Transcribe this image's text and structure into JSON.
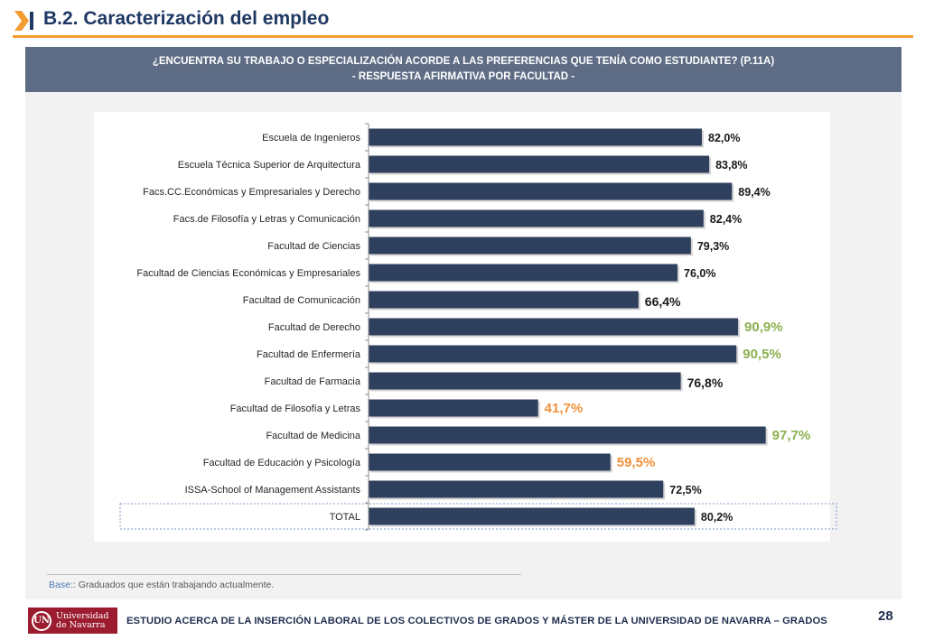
{
  "header": {
    "title": "B.2. Caracterización del empleo"
  },
  "question": {
    "line1": "¿ENCUENTRA SU TRABAJO O ESPECIALIZACIÓN ACORDE A LAS PREFERENCIAS QUE TENÍA COMO ESTUDIANTE? (P.11A)",
    "line2": "- RESPUESTA AFIRMATIVA POR FACULTAD -"
  },
  "chart_data": {
    "type": "bar",
    "orientation": "horizontal",
    "categories": [
      "Escuela de Ingenieros",
      "Escuela Técnica Superior de Arquitectura",
      "Facs.CC.Económicas y Empresariales y Derecho",
      "Facs.de Filosofía y Letras y Comunicación",
      "Facultad de Ciencias",
      "Facultad de Ciencias Económicas y Empresariales",
      "Facultad de Comunicación",
      "Facultad de Derecho",
      "Facultad de Enfermería",
      "Facultad de Farmacia",
      "Facultad de Filosofía y Letras",
      "Facultad de Medicina",
      "Facultad de Educación y Psicología",
      "ISSA-School of Management Assistants",
      "TOTAL"
    ],
    "values": [
      82.0,
      83.8,
      89.4,
      82.4,
      79.3,
      76.0,
      66.4,
      90.9,
      90.5,
      76.8,
      41.7,
      97.7,
      59.5,
      72.5,
      80.2
    ],
    "labels": [
      "82,0%",
      "83,8%",
      "89,4%",
      "82,4%",
      "79,3%",
      "76,0%",
      "66,4%",
      "90,9%",
      "90,5%",
      "76,8%",
      "41,7%",
      "97,7%",
      "59,5%",
      "72,5%",
      "80,2%"
    ],
    "label_styles": [
      "normal",
      "normal",
      "normal",
      "normal",
      "normal",
      "normal",
      "large",
      "high",
      "high",
      "large",
      "low",
      "high",
      "low",
      "normal",
      "normal"
    ],
    "xlim": [
      0,
      100
    ],
    "bar_color": "#2f3f5e",
    "high_color": "#8bb04f",
    "low_color": "#f0913a",
    "highlight": "TOTAL"
  },
  "note": {
    "label": "Base:",
    "text": ": Graduados que están trabajando actualmente."
  },
  "footer": {
    "logo_mark": "UN",
    "logo_line1": "Universidad",
    "logo_line2": "de Navarra",
    "text": "ESTUDIO ACERCA DE LA INSERCIÓN LABORAL DE LOS COLECTIVOS DE GRADOS Y MÁSTER DE LA UNIVERSIDAD DE NAVARRA – GRADOS",
    "page": "28"
  }
}
